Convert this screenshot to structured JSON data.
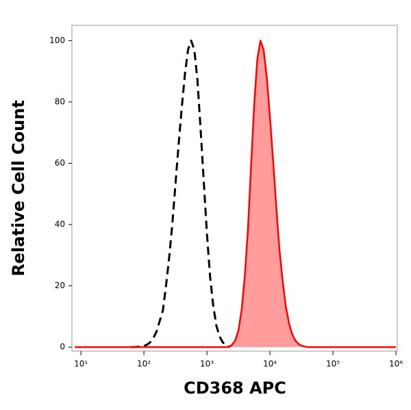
{
  "chart_data": {
    "type": "histogram-overlay",
    "xlabel": "CD368 APC",
    "ylabel": "Relative Cell Count",
    "xscale": "log",
    "xlim": [
      7.2,
      1050000
    ],
    "ylim": [
      -1.3,
      105
    ],
    "xticks": [
      {
        "value": 10,
        "label": "10¹"
      },
      {
        "value": 100,
        "label": "10²"
      },
      {
        "value": 1000,
        "label": "10³"
      },
      {
        "value": 10000,
        "label": "10⁴"
      },
      {
        "value": 100000,
        "label": "10⁵"
      },
      {
        "value": 1000000,
        "label": "10⁶"
      }
    ],
    "yticks": [
      0,
      20,
      40,
      60,
      80,
      100
    ],
    "x": [
      8,
      63,
      71,
      79,
      89,
      100,
      112,
      126,
      141,
      158,
      178,
      200,
      224,
      251,
      282,
      316,
      355,
      398,
      447,
      501,
      562,
      631,
      708,
      794,
      891,
      1000,
      1122,
      1259,
      1413,
      1585,
      1778,
      1995,
      2239,
      2512,
      2818,
      3162,
      3548,
      3981,
      4467,
      5012,
      5623,
      6310,
      7079,
      7943,
      8913,
      10000,
      11220,
      12589,
      14125,
      15849,
      17783,
      19953,
      22387,
      25119,
      28184,
      31623,
      35481,
      39811,
      1000000
    ],
    "series": [
      {
        "color": "#000000",
        "style": "dashed",
        "filled": false,
        "values": [
          null,
          0,
          0,
          0.1,
          0.2,
          0.4,
          0.8,
          1.6,
          3,
          5,
          8.5,
          12,
          20,
          29,
          40,
          53,
          66,
          78,
          89,
          97,
          100,
          97,
          87,
          71,
          54,
          37,
          23,
          13.5,
          7,
          3.5,
          1.6,
          0.7,
          0.3,
          null,
          null,
          null,
          null,
          null,
          null,
          null,
          null,
          null,
          null,
          null,
          null,
          null,
          null,
          null,
          null,
          null,
          null,
          null,
          null,
          null,
          null,
          null,
          null,
          null,
          null
        ]
      },
      {
        "color": "#ff0000",
        "fill": "#ff9c9c",
        "style": "solid",
        "filled": true,
        "values": [
          0,
          0,
          0,
          0,
          0,
          0,
          0,
          0,
          0,
          0,
          0,
          0,
          0,
          0,
          0,
          0,
          0,
          0,
          0,
          0,
          0,
          0,
          0,
          0,
          0,
          0,
          0,
          0,
          0,
          0,
          0,
          0,
          0,
          0.8,
          2.2,
          5.5,
          12,
          23,
          38,
          59,
          79,
          94,
          100,
          97,
          88,
          75,
          61,
          46,
          32,
          22,
          13.5,
          8,
          4.4,
          2.3,
          1.1,
          0.5,
          0.2,
          0,
          0
        ]
      }
    ]
  }
}
